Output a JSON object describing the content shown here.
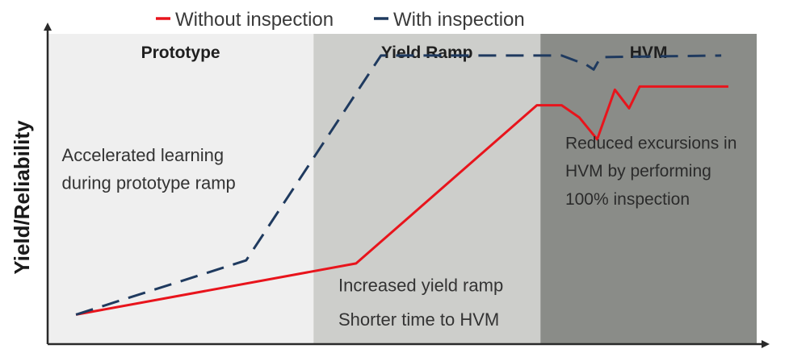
{
  "chart_data": {
    "type": "line",
    "title": "",
    "xlabel": "",
    "ylabel": "Yield/Reliability",
    "xlim": [
      0,
      100
    ],
    "ylim": [
      0,
      100
    ],
    "legend": {
      "placement": "top-center",
      "entries": [
        {
          "label": "Without inspection",
          "color": "#e8141c",
          "style": "solid"
        },
        {
          "label": "With inspection",
          "color": "#1f3a5f",
          "style": "dashed"
        }
      ]
    },
    "phases": [
      {
        "label": "Prototype",
        "x_start": 0,
        "x_end": 37.5,
        "color": "#efefef"
      },
      {
        "label": "Yield Ramp",
        "x_start": 37.5,
        "x_end": 69.5,
        "color": "#cdcecb"
      },
      {
        "label": "HVM",
        "x_start": 69.5,
        "x_end": 100,
        "color": "#8a8c88"
      }
    ],
    "series": [
      {
        "name": "Without inspection",
        "color": "#e8141c",
        "style": "solid",
        "x": [
          4,
          43.5,
          69,
          72.5,
          75,
          77.5,
          80,
          82,
          83.5,
          88,
          96
        ],
        "y": [
          9.5,
          26,
          77,
          77,
          73,
          66,
          82,
          76,
          83,
          83,
          83
        ]
      },
      {
        "name": "With inspection",
        "color": "#1f3a5f",
        "style": "dashed",
        "x": [
          4,
          28,
          47,
          72.5,
          76,
          77,
          78,
          95
        ],
        "y": [
          9.5,
          27,
          93,
          93,
          90,
          88.5,
          92.5,
          93
        ]
      }
    ],
    "annotations": [
      {
        "text": "Accelerated learning",
        "x": 2,
        "y": 59
      },
      {
        "text": "during prototype ramp",
        "x": 2,
        "y": 50
      },
      {
        "text": "Increased yield ramp",
        "x": 41,
        "y": 17
      },
      {
        "text": "Shorter time to HVM",
        "x": 41,
        "y": 6
      },
      {
        "text": "Reduced excursions in",
        "x": 73,
        "y": 63
      },
      {
        "text": "HVM by performing",
        "x": 73,
        "y": 54
      },
      {
        "text": "100% inspection",
        "x": 73,
        "y": 45
      }
    ]
  }
}
